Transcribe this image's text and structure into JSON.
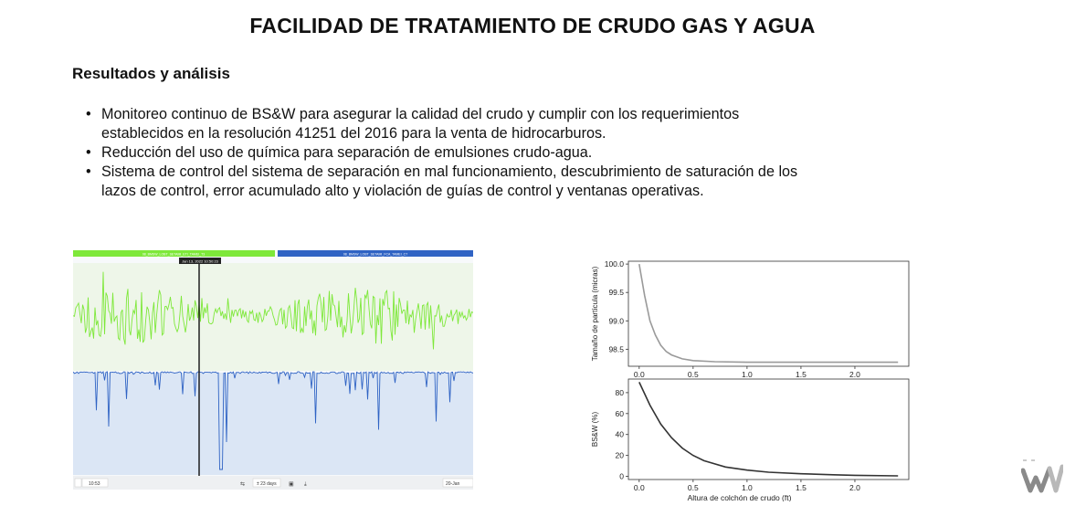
{
  "title": "FACILIDAD DE TRATAMIENTO DE CRUDO GAS Y AGUA",
  "subtitle": "Resultados y análisis",
  "bullets": [
    [
      "Monitoreo continuo de BS&W para asegurar la calidad del crudo y cumplir con los requerimientos",
      "establecidos en la resolución 41251 del 2016 para la venta de hidrocarburos."
    ],
    [
      "Reducción del uso de química para separación de emulsiones crudo-agua."
    ],
    [
      "Sistema de control del sistema de separación en mal funcionamiento, descubrimiento de saturación de los",
      "lazos de control, error acumulado alto y violación de guías de control y ventanas operativas."
    ]
  ],
  "trend_screenshot": {
    "legend_green": "08_BMSW_LOBT_SETAMI_ETI_TAMEI_T3",
    "legend_blue": "08_BMSW_LOBT_SETAMI_FCA_TAMEI_C7",
    "cursor_label": "Jan 13, 2022 10:50:23",
    "footer_time": "10:53",
    "footer_range": "± 23 days",
    "footer_right": "20-Jan",
    "colors": {
      "green": "#7ee83a",
      "blue": "#2f63c4",
      "blue_fill": "#dbe6f5",
      "green_fill": "#eef6e9"
    }
  },
  "chart_data": [
    {
      "type": "line",
      "title": "",
      "xlabel": "",
      "ylabel": "Tamaño de partícula (micras)",
      "xlim": [
        -0.1,
        2.5
      ],
      "ylim": [
        98.2,
        100.05
      ],
      "xticks": [
        "0.0",
        "0.5",
        "1.0",
        "1.5",
        "2.0"
      ],
      "yticks": [
        "98.5",
        "99.0",
        "99.5",
        "100.0"
      ],
      "grid": false,
      "series": [
        {
          "color": "#9a9a9a",
          "x": [
            0.0,
            0.05,
            0.1,
            0.15,
            0.2,
            0.25,
            0.3,
            0.4,
            0.5,
            0.7,
            1.0,
            1.5,
            2.0,
            2.4
          ],
          "y": [
            100.0,
            99.45,
            99.0,
            98.75,
            98.57,
            98.46,
            98.4,
            98.33,
            98.3,
            98.28,
            98.27,
            98.27,
            98.27,
            98.27
          ]
        }
      ]
    },
    {
      "type": "line",
      "title": "",
      "xlabel": "Altura de colchón de crudo (ft)",
      "ylabel": "BS&W (%)",
      "xlim": [
        -0.1,
        2.5
      ],
      "ylim": [
        -3,
        93
      ],
      "xticks": [
        "0.0",
        "0.5",
        "1.0",
        "1.5",
        "2.0"
      ],
      "yticks": [
        "0",
        "20",
        "40",
        "60",
        "80"
      ],
      "grid": false,
      "series": [
        {
          "color": "#333333",
          "x": [
            0.0,
            0.1,
            0.2,
            0.3,
            0.4,
            0.5,
            0.6,
            0.8,
            1.0,
            1.2,
            1.5,
            1.8,
            2.0,
            2.4
          ],
          "y": [
            90,
            68,
            50,
            37,
            27,
            20,
            15,
            9,
            6,
            4,
            2.5,
            1.5,
            1,
            0.5
          ]
        }
      ]
    }
  ]
}
